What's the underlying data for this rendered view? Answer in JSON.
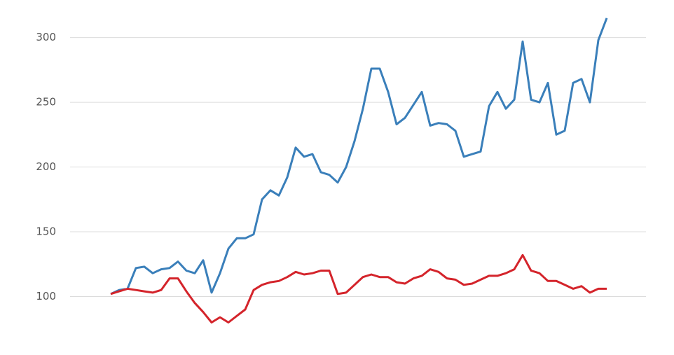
{
  "chart_data": {
    "type": "line",
    "series": [
      {
        "color": "#3a7fba",
        "values": [
          102,
          105,
          106,
          122,
          123,
          118,
          121,
          122,
          127,
          120,
          118,
          128,
          103,
          118,
          137,
          145,
          145,
          148,
          175,
          182,
          178,
          192,
          215,
          208,
          210,
          196,
          194,
          188,
          200,
          220,
          245,
          276,
          276,
          258,
          233,
          238,
          248,
          258,
          232,
          234,
          233,
          228,
          208,
          210,
          212,
          247,
          258,
          245,
          252,
          297,
          252,
          250,
          265,
          225,
          228,
          265,
          268,
          250,
          298,
          315
        ]
      },
      {
        "color": "#d4242b",
        "values": [
          102,
          104,
          106,
          105,
          104,
          103,
          105,
          114,
          114,
          104,
          95,
          88,
          80,
          84,
          80,
          85,
          90,
          105,
          109,
          111,
          112,
          115,
          119,
          117,
          118,
          120,
          120,
          102,
          103,
          109,
          115,
          117,
          115,
          115,
          111,
          110,
          114,
          116,
          121,
          119,
          114,
          113,
          109,
          110,
          113,
          116,
          116,
          118,
          121,
          132,
          120,
          118,
          112,
          112,
          109,
          106,
          108,
          103,
          106,
          106
        ]
      }
    ],
    "ylim": [
      57,
      329
    ],
    "yticks": [
      100,
      150,
      200,
      250,
      300
    ],
    "grid": true
  }
}
